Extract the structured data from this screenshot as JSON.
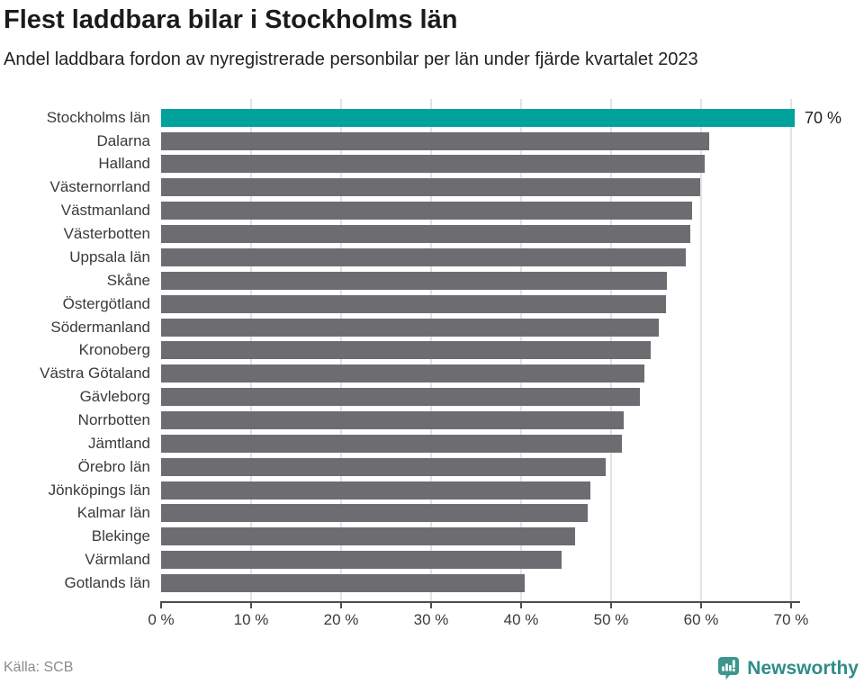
{
  "header": {
    "title": "Flest laddbara bilar i Stockholms län",
    "subtitle": "Andel laddbara fordon av nyregistrerade personbilar per län under fjärde kvartalet 2023"
  },
  "chart_data": {
    "type": "bar",
    "orientation": "horizontal",
    "title": "Flest laddbara bilar i Stockholms län",
    "subtitle": "Andel laddbara fordon av nyregistrerade personbilar per län under fjärde kvartalet 2023",
    "categories": [
      "Stockholms län",
      "Dalarna",
      "Halland",
      "Västernorrland",
      "Västmanland",
      "Västerbotten",
      "Uppsala län",
      "Skåne",
      "Östergötland",
      "Södermanland",
      "Kronoberg",
      "Västra Götaland",
      "Gävleborg",
      "Norrbotten",
      "Jämtland",
      "Örebro län",
      "Jönköpings län",
      "Kalmar län",
      "Blekinge",
      "Värmland",
      "Gotlands län"
    ],
    "values": [
      70.4,
      60.9,
      60.4,
      59.9,
      59.0,
      58.8,
      58.3,
      56.2,
      56.1,
      55.3,
      54.4,
      53.7,
      53.2,
      51.4,
      51.2,
      49.4,
      47.7,
      47.4,
      46.0,
      44.5,
      40.4
    ],
    "value_label_text": "70 %",
    "value_label_index": 0,
    "highlight_index": 0,
    "highlight_color": "#00a29b",
    "bar_color": "#6d6d71",
    "gridline_color": "#e2e4e4",
    "axis_color": "#4d4d4d",
    "x_ticks": [
      "0 %",
      "10 %",
      "20 %",
      "30 %",
      "40 %",
      "50 %",
      "60 %",
      "70 %"
    ],
    "x_tick_values": [
      0,
      10,
      20,
      30,
      40,
      50,
      60,
      70
    ],
    "xlim": [
      0,
      70
    ],
    "grid": "vertical-only",
    "legend": "none"
  },
  "footer": {
    "source": "Källa: SCB",
    "brand": "Newsworthy"
  },
  "icons": {
    "brand_logo": "newsworthy-speech-bubble-chart-icon"
  },
  "colors": {
    "accent_teal": "#00a29b",
    "neutral_bar": "#6d6d71",
    "brand_teal_icon": "#3a968f",
    "brand_teal_text": "#2f8d88",
    "title_text": "#1b1b1b",
    "label_text": "#3a3a3a",
    "source_text": "#8b8b8b"
  }
}
